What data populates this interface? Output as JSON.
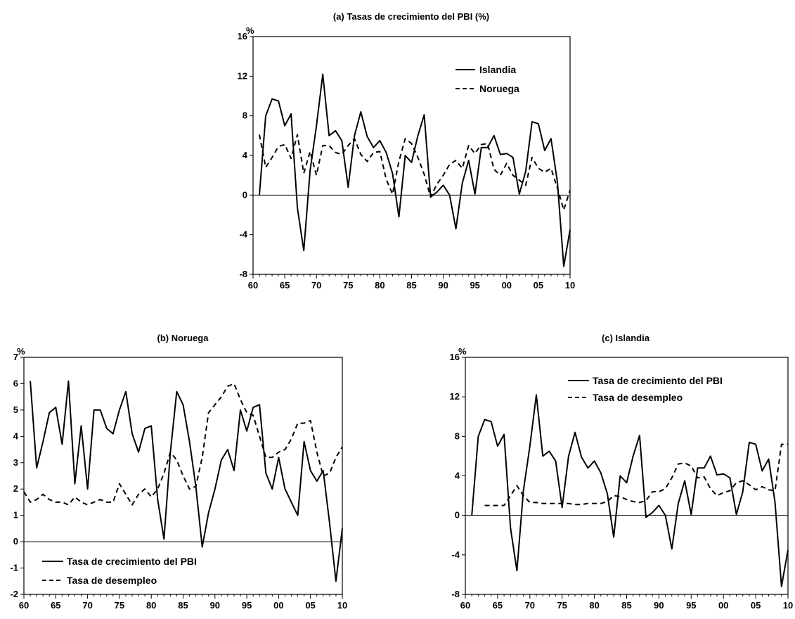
{
  "chart_data": [
    {
      "id": "a",
      "type": "line",
      "title": "(a) Tasas de crecimiento del PBI (%)",
      "ylabel": "%",
      "xlim": [
        1960,
        2010
      ],
      "ylim": [
        -8,
        16
      ],
      "yticks": [
        -8,
        -4,
        0,
        4,
        8,
        12,
        16
      ],
      "xticks": [
        "60",
        "65",
        "70",
        "75",
        "80",
        "85",
        "90",
        "95",
        "00",
        "05",
        "10"
      ],
      "legend_position": "top-right",
      "series": [
        {
          "name": "Islandia",
          "style": "solid",
          "x": [
            1961,
            1962,
            1963,
            1964,
            1965,
            1966,
            1967,
            1968,
            1969,
            1970,
            1971,
            1972,
            1973,
            1974,
            1975,
            1976,
            1977,
            1978,
            1979,
            1980,
            1981,
            1982,
            1983,
            1984,
            1985,
            1986,
            1987,
            1988,
            1989,
            1990,
            1991,
            1992,
            1993,
            1994,
            1995,
            1996,
            1997,
            1998,
            1999,
            2000,
            2001,
            2002,
            2003,
            2004,
            2005,
            2006,
            2007,
            2008,
            2009,
            2010
          ],
          "y": [
            0.0,
            8.0,
            9.7,
            9.5,
            7.0,
            8.2,
            -1.3,
            -5.6,
            2.5,
            7.0,
            12.2,
            6.0,
            6.5,
            5.5,
            0.8,
            6.0,
            8.4,
            5.9,
            4.8,
            5.5,
            4.3,
            2.2,
            -2.2,
            4.0,
            3.3,
            6.0,
            8.1,
            -0.2,
            0.3,
            1.0,
            0.0,
            -3.4,
            1.2,
            3.5,
            0.1,
            4.8,
            4.8,
            6.0,
            4.1,
            4.2,
            3.8,
            0.1,
            2.4,
            7.4,
            7.2,
            4.5,
            5.7,
            1.3,
            -7.2,
            -3.5
          ]
        },
        {
          "name": "Noruega",
          "style": "dashed",
          "x": [
            1961,
            1962,
            1963,
            1964,
            1965,
            1966,
            1967,
            1968,
            1969,
            1970,
            1971,
            1972,
            1973,
            1974,
            1975,
            1976,
            1977,
            1978,
            1979,
            1980,
            1981,
            1982,
            1983,
            1984,
            1985,
            1986,
            1987,
            1988,
            1989,
            1990,
            1991,
            1992,
            1993,
            1994,
            1995,
            1996,
            1997,
            1998,
            1999,
            2000,
            2001,
            2002,
            2003,
            2004,
            2005,
            2006,
            2007,
            2008,
            2009,
            2010
          ],
          "y": [
            6.1,
            2.8,
            3.8,
            4.9,
            5.1,
            3.7,
            6.1,
            2.2,
            4.4,
            2.0,
            5.0,
            5.0,
            4.3,
            4.1,
            5.0,
            5.7,
            4.1,
            3.4,
            4.3,
            4.4,
            1.6,
            0.1,
            3.4,
            5.7,
            5.2,
            3.8,
            2.1,
            -0.2,
            1.1,
            2.0,
            3.1,
            3.5,
            2.7,
            5.0,
            4.2,
            5.1,
            5.2,
            2.6,
            2.0,
            3.2,
            2.0,
            1.5,
            1.0,
            3.8,
            2.7,
            2.3,
            2.7,
            0.7,
            -1.5,
            0.5
          ]
        }
      ]
    },
    {
      "id": "b",
      "type": "line",
      "title": "(b) Noruega",
      "ylabel": "%",
      "xlim": [
        1960,
        2010
      ],
      "ylim": [
        -2,
        7
      ],
      "yticks": [
        -2,
        -1,
        0,
        1,
        2,
        3,
        4,
        5,
        6,
        7
      ],
      "xticks": [
        "60",
        "65",
        "70",
        "75",
        "80",
        "85",
        "90",
        "95",
        "00",
        "05",
        "10"
      ],
      "legend_position": "bottom-left",
      "series": [
        {
          "name": "Tasa de crecimiento del PBI",
          "style": "solid",
          "x": [
            1961,
            1962,
            1963,
            1964,
            1965,
            1966,
            1967,
            1968,
            1969,
            1970,
            1971,
            1972,
            1973,
            1974,
            1975,
            1976,
            1977,
            1978,
            1979,
            1980,
            1981,
            1982,
            1983,
            1984,
            1985,
            1986,
            1987,
            1988,
            1989,
            1990,
            1991,
            1992,
            1993,
            1994,
            1995,
            1996,
            1997,
            1998,
            1999,
            2000,
            2001,
            2002,
            2003,
            2004,
            2005,
            2006,
            2007,
            2008,
            2009,
            2010
          ],
          "y": [
            6.1,
            2.8,
            3.8,
            4.9,
            5.1,
            3.7,
            6.1,
            2.2,
            4.4,
            2.0,
            5.0,
            5.0,
            4.3,
            4.1,
            5.0,
            5.7,
            4.1,
            3.4,
            4.3,
            4.4,
            1.6,
            0.1,
            3.4,
            5.7,
            5.2,
            3.8,
            2.1,
            -0.2,
            1.1,
            2.0,
            3.1,
            3.5,
            2.7,
            5.0,
            4.2,
            5.1,
            5.2,
            2.6,
            2.0,
            3.2,
            2.0,
            1.5,
            1.0,
            3.8,
            2.7,
            2.3,
            2.7,
            0.7,
            -1.5,
            0.5
          ]
        },
        {
          "name": "Tasa de desempleo",
          "style": "dashed",
          "x": [
            1960,
            1961,
            1962,
            1963,
            1964,
            1965,
            1966,
            1967,
            1968,
            1969,
            1970,
            1971,
            1972,
            1973,
            1974,
            1975,
            1976,
            1977,
            1978,
            1979,
            1980,
            1981,
            1982,
            1983,
            1984,
            1985,
            1986,
            1987,
            1988,
            1989,
            1990,
            1991,
            1992,
            1993,
            1994,
            1995,
            1996,
            1997,
            1998,
            1999,
            2000,
            2001,
            2002,
            2003,
            2004,
            2005,
            2006,
            2007,
            2008,
            2009,
            2010
          ],
          "y": [
            1.9,
            1.5,
            1.6,
            1.8,
            1.6,
            1.5,
            1.5,
            1.4,
            1.7,
            1.5,
            1.4,
            1.5,
            1.6,
            1.5,
            1.5,
            2.2,
            1.8,
            1.4,
            1.8,
            2.0,
            1.7,
            2.0,
            2.6,
            3.4,
            3.1,
            2.5,
            2.0,
            2.1,
            3.2,
            4.9,
            5.2,
            5.5,
            5.9,
            6.0,
            5.4,
            4.9,
            4.8,
            4.0,
            3.2,
            3.2,
            3.4,
            3.5,
            3.9,
            4.5,
            4.5,
            4.6,
            3.4,
            2.5,
            2.6,
            3.2,
            3.6
          ]
        }
      ]
    },
    {
      "id": "c",
      "type": "line",
      "title": "(c) Islandia",
      "ylabel": "%",
      "xlim": [
        1960,
        2010
      ],
      "ylim": [
        -8,
        16
      ],
      "yticks": [
        -8,
        -4,
        0,
        4,
        8,
        12,
        16
      ],
      "xticks": [
        "60",
        "65",
        "70",
        "75",
        "80",
        "85",
        "90",
        "95",
        "00",
        "05",
        "10"
      ],
      "legend_position": "top-left",
      "series": [
        {
          "name": "Tasa de crecimiento del PBI",
          "style": "solid",
          "x": [
            1961,
            1962,
            1963,
            1964,
            1965,
            1966,
            1967,
            1968,
            1969,
            1970,
            1971,
            1972,
            1973,
            1974,
            1975,
            1976,
            1977,
            1978,
            1979,
            1980,
            1981,
            1982,
            1983,
            1984,
            1985,
            1986,
            1987,
            1988,
            1989,
            1990,
            1991,
            1992,
            1993,
            1994,
            1995,
            1996,
            1997,
            1998,
            1999,
            2000,
            2001,
            2002,
            2003,
            2004,
            2005,
            2006,
            2007,
            2008,
            2009,
            2010
          ],
          "y": [
            0.0,
            8.0,
            9.7,
            9.5,
            7.0,
            8.2,
            -1.3,
            -5.6,
            2.5,
            7.0,
            12.2,
            6.0,
            6.5,
            5.5,
            0.8,
            6.0,
            8.4,
            5.9,
            4.8,
            5.5,
            4.3,
            2.2,
            -2.2,
            4.0,
            3.3,
            6.0,
            8.1,
            -0.2,
            0.3,
            1.0,
            0.0,
            -3.4,
            1.2,
            3.5,
            0.1,
            4.8,
            4.8,
            6.0,
            4.1,
            4.2,
            3.8,
            0.1,
            2.4,
            7.4,
            7.2,
            4.5,
            5.7,
            1.3,
            -7.2,
            -3.5
          ]
        },
        {
          "name": "Tasa de desempleo",
          "style": "dashed",
          "x": [
            1963,
            1964,
            1965,
            1966,
            1967,
            1968,
            1969,
            1970,
            1971,
            1972,
            1973,
            1974,
            1975,
            1976,
            1977,
            1978,
            1979,
            1980,
            1981,
            1982,
            1983,
            1984,
            1985,
            1986,
            1987,
            1988,
            1989,
            1990,
            1991,
            1992,
            1993,
            1994,
            1995,
            1996,
            1997,
            1998,
            1999,
            2000,
            2001,
            2002,
            2003,
            2004,
            2005,
            2006,
            2007,
            2008,
            2009,
            2010
          ],
          "y": [
            1.0,
            1.0,
            1.0,
            1.0,
            2.0,
            3.0,
            2.0,
            1.3,
            1.3,
            1.2,
            1.2,
            1.2,
            1.2,
            1.2,
            1.1,
            1.1,
            1.2,
            1.2,
            1.2,
            1.4,
            2.0,
            1.9,
            1.6,
            1.4,
            1.3,
            1.5,
            2.4,
            2.4,
            2.7,
            3.8,
            5.2,
            5.3,
            5.0,
            3.8,
            3.9,
            2.7,
            2.0,
            2.3,
            2.5,
            3.3,
            3.5,
            3.1,
            2.6,
            2.9,
            2.6,
            2.5,
            7.2,
            7.2
          ]
        }
      ]
    }
  ]
}
